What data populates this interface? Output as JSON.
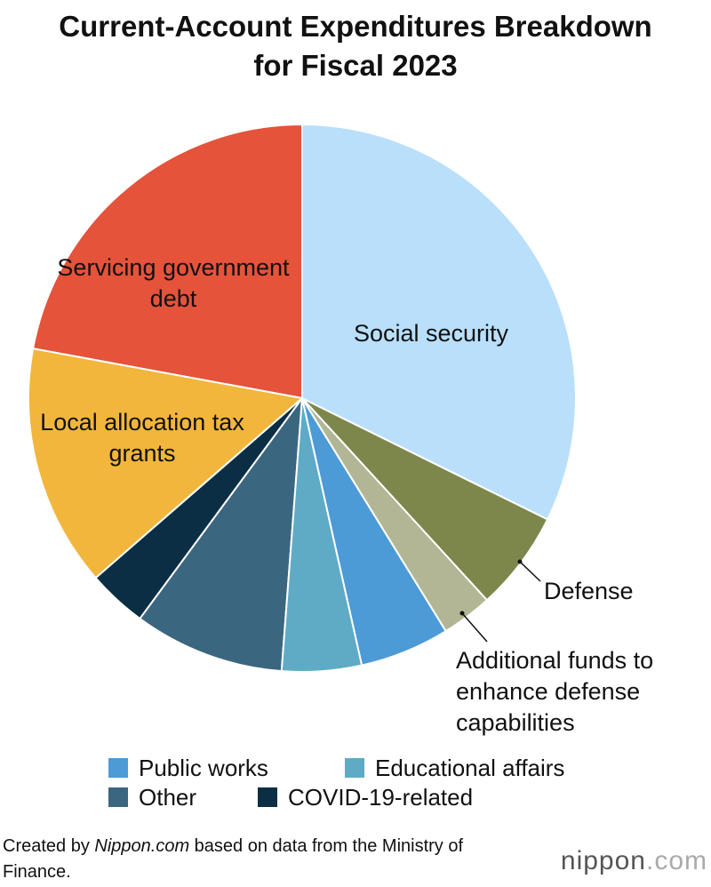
{
  "chart_data": {
    "type": "pie",
    "title": "Current-Account Expenditures Breakdown for Fiscal 2023",
    "categories": [
      "Social security",
      "Defense",
      "Additional funds to enhance defense capabilities",
      "Public works",
      "Educational affairs",
      "Other",
      "COVID-19-related",
      "Local allocation tax grants",
      "Servicing government debt"
    ],
    "values": [
      32.3,
      5.9,
      3.0,
      5.3,
      4.7,
      8.9,
      3.5,
      14.3,
      22.1
    ],
    "colors": [
      "#b9dffb",
      "#7e874b",
      "#b2b695",
      "#4c9bd6",
      "#5fabc6",
      "#3b6680",
      "#0b2e45",
      "#f2b63c",
      "#e5533a"
    ],
    "source": [
      "Created by ",
      "Nippon.com",
      " based on data from the Ministry of Finance."
    ],
    "logo": [
      "nippon",
      ".com"
    ]
  }
}
